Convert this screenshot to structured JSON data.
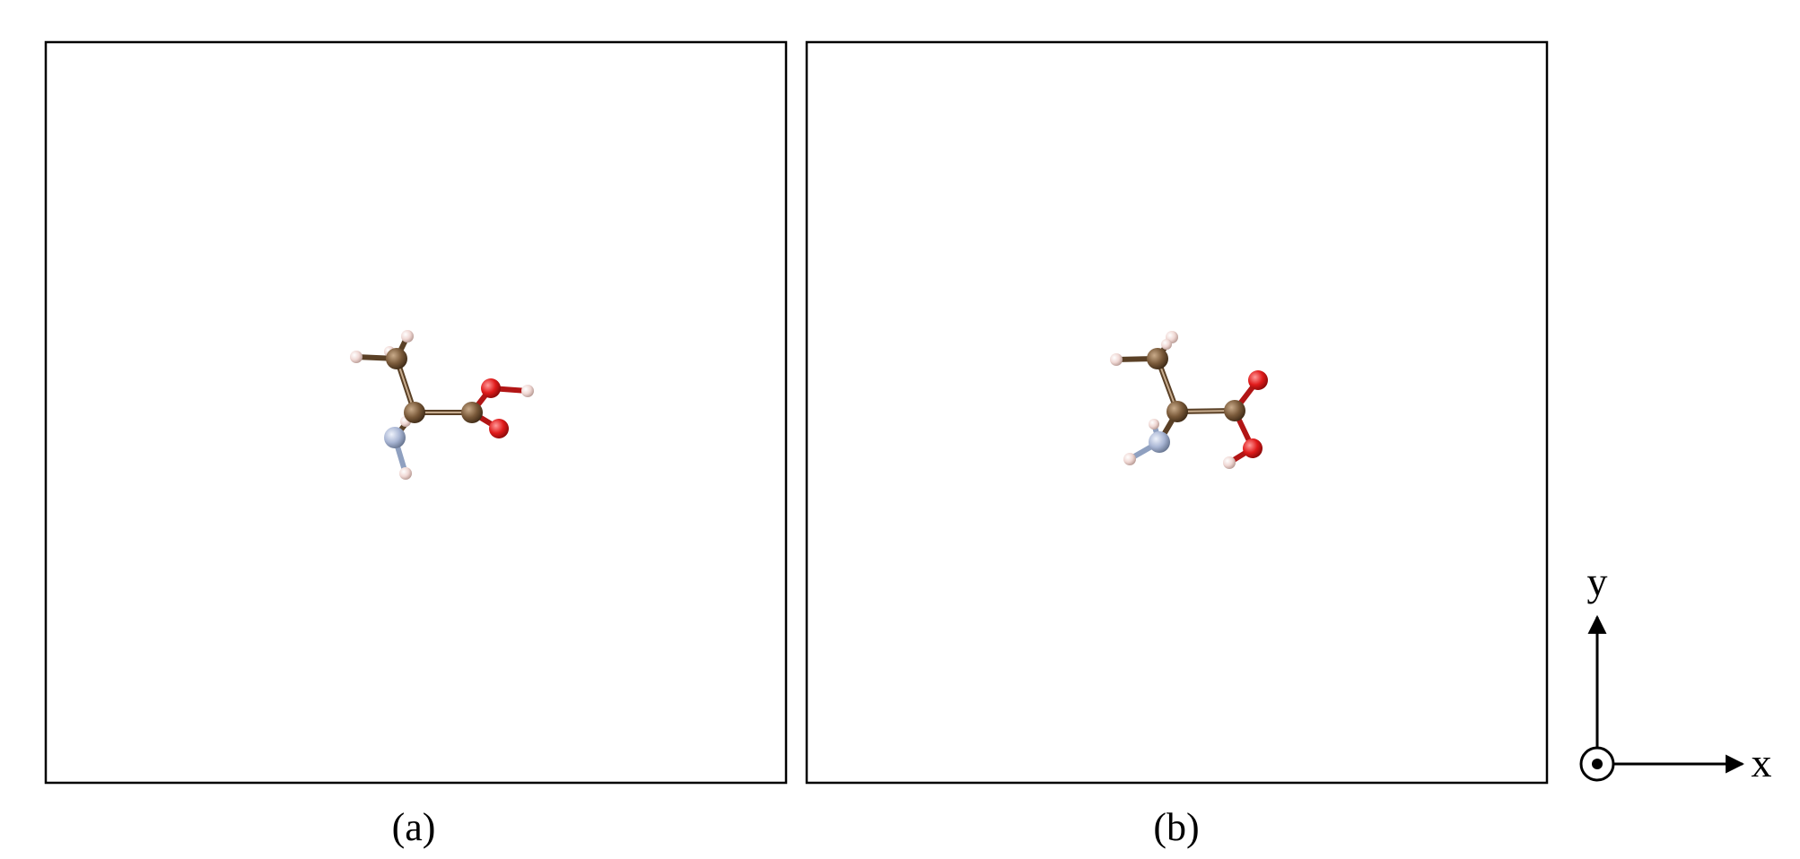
{
  "panels": [
    {
      "caption": "(a)"
    },
    {
      "caption": "(b)"
    }
  ],
  "axes": {
    "y_label": "y",
    "x_label": "x"
  },
  "colors": {
    "carbon": "#7a5a3a",
    "oxygen": "#e01b1b",
    "nitrogen": "#a9b6d4",
    "hydrogen": "#f0d8d4",
    "bond_shade": "#5a4026",
    "frame": "#000000"
  }
}
